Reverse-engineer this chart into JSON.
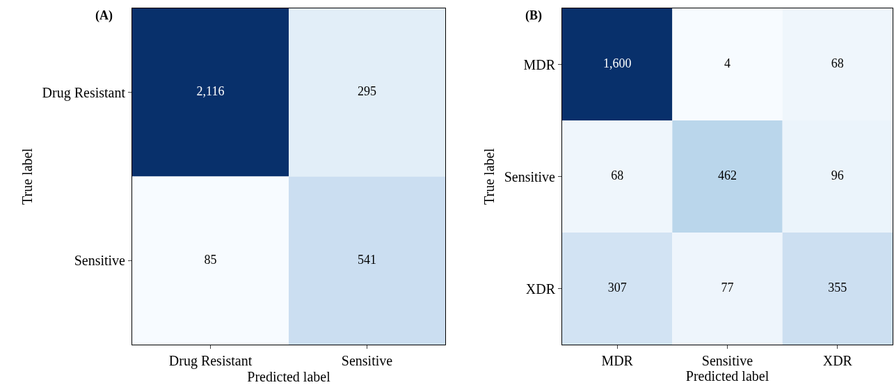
{
  "chart_data": [
    {
      "type": "heatmap",
      "title": "(A)",
      "xlabel": "Predicted label",
      "ylabel": "True label",
      "categories": [
        "Drug Resistant",
        "Sensitive"
      ],
      "y_categories": [
        "Drug Resistant",
        "Sensitive"
      ],
      "cells": [
        [
          2116,
          295
        ],
        [
          85,
          541
        ]
      ],
      "cell_labels": [
        [
          "2,116",
          "295"
        ],
        [
          "85",
          "541"
        ]
      ]
    },
    {
      "type": "heatmap",
      "title": "(B)",
      "xlabel": "Predicted label",
      "ylabel": "True label",
      "categories": [
        "MDR",
        "Sensitive",
        "XDR"
      ],
      "y_categories": [
        "MDR",
        "Sensitive",
        "XDR"
      ],
      "cells": [
        [
          1600,
          4,
          68
        ],
        [
          68,
          462,
          96
        ],
        [
          307,
          77,
          355
        ]
      ],
      "cell_labels": [
        [
          "1,600",
          "4",
          "68"
        ],
        [
          "68",
          "462",
          "96"
        ],
        [
          "307",
          "77",
          "355"
        ]
      ]
    }
  ]
}
